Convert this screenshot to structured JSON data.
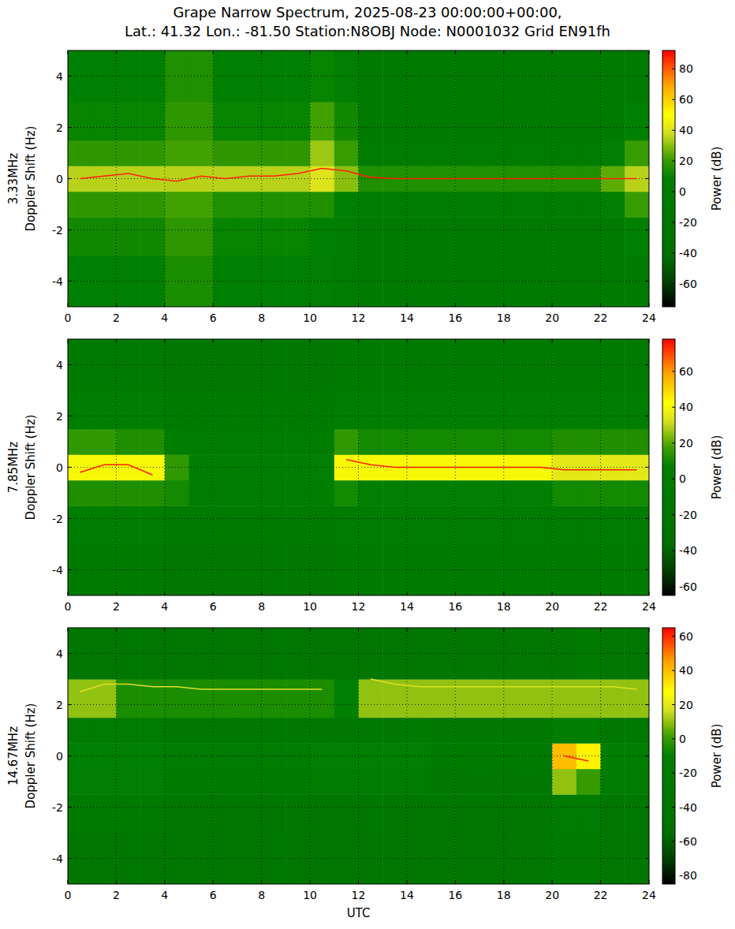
{
  "chart_data": [
    {
      "type": "heatmap",
      "title": [
        "Grape Narrow Spectrum, 2025-08-23 00:00:00+00:00,",
        "Lat.: 41.32 Lon.: -81.50 Station:N8OBJ Node: N0001032 Grid EN91fh"
      ],
      "ylabel": [
        "3.33MHz",
        "Doppler Shift (Hz)"
      ],
      "xlim": [
        0,
        24
      ],
      "xticks": [
        0,
        2,
        4,
        6,
        8,
        10,
        12,
        14,
        16,
        18,
        20,
        22,
        24
      ],
      "ylim": [
        -5,
        5
      ],
      "yticks": [
        -4,
        -2,
        0,
        2,
        4
      ],
      "grid": true,
      "x_edges": [
        0,
        1,
        2,
        3,
        4,
        5,
        6,
        7,
        8,
        9,
        10,
        11,
        12,
        13,
        14,
        15,
        16,
        17,
        18,
        19,
        20,
        21,
        22,
        23,
        24
      ],
      "y_edges": [
        -5,
        -3,
        -1.5,
        -0.5,
        0.5,
        1.5,
        3,
        5
      ],
      "cells": [
        [
          8,
          8,
          8,
          8,
          14,
          14,
          7,
          7,
          7,
          7,
          5,
          0,
          -8,
          -8,
          -8,
          -8,
          -8,
          -8,
          -8,
          -8,
          -8,
          -8,
          -8,
          -8
        ],
        [
          12,
          12,
          12,
          12,
          18,
          18,
          10,
          10,
          10,
          10,
          8,
          3,
          -7,
          -7,
          -7,
          -7,
          -7,
          -7,
          -7,
          -7,
          -7,
          -7,
          -7,
          8
        ],
        [
          18,
          18,
          18,
          18,
          22,
          22,
          15,
          15,
          15,
          15,
          15,
          8,
          -5,
          -5,
          -5,
          -5,
          -5,
          -5,
          -5,
          -5,
          -5,
          -5,
          5,
          20
        ],
        [
          35,
          35,
          35,
          35,
          35,
          35,
          35,
          35,
          35,
          35,
          40,
          30,
          15,
          15,
          15,
          15,
          15,
          15,
          15,
          15,
          15,
          15,
          25,
          35
        ],
        [
          18,
          18,
          18,
          18,
          22,
          22,
          18,
          18,
          18,
          18,
          32,
          20,
          0,
          0,
          -5,
          -5,
          -5,
          -5,
          -5,
          -5,
          -5,
          -5,
          5,
          20
        ],
        [
          10,
          10,
          10,
          10,
          18,
          18,
          10,
          10,
          10,
          10,
          22,
          12,
          -6,
          -6,
          -6,
          -6,
          -6,
          -6,
          -6,
          -6,
          -6,
          -6,
          -6,
          8
        ],
        [
          8,
          8,
          8,
          8,
          15,
          15,
          8,
          8,
          8,
          8,
          10,
          5,
          -8,
          -8,
          -8,
          -8,
          -8,
          -8,
          -8,
          -8,
          -8,
          -8,
          -8,
          -8
        ]
      ],
      "series": [
        {
          "color": "#ff2000",
          "x": [
            0.5,
            1.5,
            2.5,
            3.5,
            4.5,
            5.5,
            6.5,
            7.5,
            8.5,
            9.5,
            10.5,
            11.5,
            12.5,
            13.5,
            14.5,
            15.5,
            16.5,
            17.5,
            18.5,
            19.5,
            20.5,
            21.5,
            22.5,
            23.5
          ],
          "values": [
            0,
            0.1,
            0.2,
            0,
            -0.1,
            0.1,
            0,
            0.1,
            0.1,
            0.2,
            0.4,
            0.3,
            0.05,
            0,
            0,
            0,
            0,
            0,
            0,
            0,
            0,
            0,
            0,
            0
          ]
        }
      ],
      "colorbar": {
        "label": "Power (dB)",
        "range": [
          -75,
          92
        ],
        "ticks": [
          -60,
          -40,
          -20,
          0,
          20,
          40,
          60,
          80
        ]
      }
    },
    {
      "type": "heatmap",
      "ylabel": [
        "7.85MHz",
        "Doppler Shift (Hz)"
      ],
      "xlim": [
        0,
        24
      ],
      "xticks": [
        0,
        2,
        4,
        6,
        8,
        10,
        12,
        14,
        16,
        18,
        20,
        22,
        24
      ],
      "ylim": [
        -5,
        5
      ],
      "yticks": [
        -4,
        -2,
        0,
        2,
        4
      ],
      "grid": true,
      "x_edges": [
        0,
        1,
        2,
        3,
        4,
        5,
        6,
        7,
        8,
        9,
        10,
        11,
        12,
        13,
        14,
        15,
        16,
        17,
        18,
        19,
        20,
        21,
        22,
        23,
        24
      ],
      "y_edges": [
        -5,
        -3,
        -1.5,
        -0.5,
        0.5,
        1.5,
        3,
        5
      ],
      "cells": [
        [
          -8,
          -8,
          -8,
          -8,
          -12,
          -12,
          -12,
          -12,
          -12,
          -12,
          -12,
          -8,
          -8,
          -8,
          -8,
          -8,
          -8,
          -8,
          -8,
          -8,
          -8,
          -8,
          -8,
          -8
        ],
        [
          0,
          0,
          0,
          0,
          -8,
          -8,
          -8,
          -8,
          -8,
          -8,
          -8,
          -4,
          -4,
          -4,
          -4,
          -4,
          -4,
          -4,
          -4,
          -4,
          -4,
          -4,
          -4,
          -4
        ],
        [
          12,
          12,
          12,
          12,
          10,
          -2,
          -2,
          -2,
          -2,
          -2,
          0,
          10,
          5,
          5,
          5,
          5,
          5,
          5,
          5,
          5,
          10,
          10,
          10,
          10
        ],
        [
          40,
          40,
          40,
          40,
          15,
          2,
          2,
          2,
          2,
          2,
          5,
          40,
          40,
          40,
          40,
          40,
          40,
          40,
          40,
          40,
          35,
          35,
          35,
          35
        ],
        [
          15,
          15,
          12,
          12,
          0,
          -2,
          -2,
          -2,
          -2,
          -2,
          -2,
          15,
          10,
          10,
          10,
          10,
          10,
          10,
          10,
          10,
          12,
          12,
          12,
          12
        ],
        [
          0,
          0,
          0,
          0,
          -8,
          -8,
          -8,
          -8,
          -8,
          -8,
          -8,
          0,
          0,
          0,
          0,
          0,
          0,
          0,
          0,
          0,
          2,
          2,
          2,
          2
        ],
        [
          -10,
          -10,
          -10,
          -10,
          -12,
          -12,
          -12,
          -12,
          -12,
          -12,
          -12,
          -8,
          -8,
          -8,
          -8,
          -8,
          -8,
          -8,
          -8,
          -8,
          -8,
          -8,
          -8,
          -8
        ]
      ],
      "series": [
        {
          "color": "#ff2000",
          "x": [
            0.5,
            1.5,
            2.5,
            3.5,
            4.5,
            5.5,
            6.5,
            7.5,
            8.5,
            9.5,
            10.5,
            11.5,
            12.5,
            13.5,
            14.5,
            15.5,
            16.5,
            17.5,
            18.5,
            19.5,
            20.5,
            21.5,
            22.5,
            23.5
          ],
          "values": [
            -0.2,
            0.1,
            0.1,
            -0.3,
            null,
            null,
            null,
            null,
            null,
            null,
            null,
            0.3,
            0.1,
            0,
            0,
            0,
            0,
            0,
            0,
            0,
            -0.1,
            -0.1,
            -0.1,
            -0.1
          ]
        }
      ],
      "colorbar": {
        "label": "Power (dB)",
        "range": [
          -65,
          78
        ],
        "ticks": [
          -60,
          -40,
          -20,
          0,
          20,
          40,
          60
        ]
      }
    },
    {
      "type": "heatmap",
      "ylabel": [
        "14.67MHz",
        "Doppler Shift (Hz)"
      ],
      "xlabel": "UTC",
      "xlim": [
        0,
        24
      ],
      "xticks": [
        0,
        2,
        4,
        6,
        8,
        10,
        12,
        14,
        16,
        18,
        20,
        22,
        24
      ],
      "ylim": [
        -5,
        5
      ],
      "yticks": [
        -4,
        -2,
        0,
        2,
        4
      ],
      "grid": true,
      "x_edges": [
        0,
        1,
        2,
        3,
        4,
        5,
        6,
        7,
        8,
        9,
        10,
        11,
        12,
        13,
        14,
        15,
        16,
        17,
        18,
        19,
        20,
        21,
        22,
        23,
        24
      ],
      "y_edges": [
        -5,
        -3,
        -1.5,
        -0.5,
        0.5,
        1.5,
        3,
        5
      ],
      "cells": [
        [
          -35,
          -35,
          -35,
          -35,
          -35,
          -35,
          -35,
          -35,
          -35,
          -35,
          -35,
          -35,
          -35,
          -35,
          -35,
          -35,
          -35,
          -35,
          -35,
          -35,
          -25,
          -25,
          -35,
          -35
        ],
        [
          -25,
          -25,
          -25,
          -25,
          -32,
          -32,
          -32,
          -32,
          -32,
          -32,
          -32,
          -32,
          -32,
          -32,
          -32,
          -32,
          -32,
          -32,
          -32,
          -32,
          -20,
          -20,
          -32,
          -32
        ],
        [
          -12,
          -12,
          -12,
          -12,
          -25,
          -25,
          -25,
          -25,
          -25,
          -25,
          -22,
          -22,
          -22,
          -22,
          -22,
          -30,
          -30,
          -30,
          -30,
          -30,
          10,
          0,
          -18,
          -18
        ],
        [
          -10,
          -10,
          -10,
          -10,
          -22,
          -22,
          -22,
          -22,
          -22,
          -22,
          -12,
          -12,
          -12,
          -12,
          -12,
          -25,
          -25,
          -25,
          -25,
          -25,
          40,
          30,
          -15,
          -15
        ],
        [
          -20,
          -20,
          -20,
          -20,
          -30,
          -30,
          -30,
          -30,
          -30,
          -30,
          -30,
          -30,
          -30,
          -30,
          -25,
          -30,
          -30,
          -30,
          -30,
          -30,
          -15,
          -15,
          -30,
          -30
        ],
        [
          10,
          10,
          -5,
          -5,
          -5,
          -5,
          -5,
          -5,
          -5,
          -5,
          -5,
          -10,
          10,
          10,
          10,
          10,
          10,
          10,
          10,
          10,
          10,
          10,
          10,
          10
        ],
        [
          -35,
          -35,
          -35,
          -35,
          -35,
          -35,
          -35,
          -35,
          -35,
          -35,
          -35,
          -35,
          -35,
          -35,
          -35,
          -35,
          -35,
          -35,
          -35,
          -35,
          -35,
          -25,
          -35,
          -35
        ]
      ],
      "series": [
        {
          "color": "#e0e020",
          "x": [
            0.5,
            1.5,
            2.5,
            3.5,
            4.5,
            5.5,
            6.5,
            7.5,
            8.5,
            9.5,
            10.5,
            11.5,
            12.5,
            13.5,
            14.5,
            15.5,
            16.5,
            17.5,
            18.5,
            19.5,
            20.5,
            21.5,
            22.5,
            23.5
          ],
          "values": [
            2.5,
            2.8,
            2.8,
            2.7,
            2.7,
            2.6,
            2.6,
            2.6,
            2.6,
            2.6,
            2.6,
            null,
            3.0,
            2.8,
            2.7,
            2.7,
            2.7,
            2.7,
            2.7,
            2.7,
            2.7,
            2.7,
            2.7,
            2.6
          ]
        },
        {
          "color": "#ff2000",
          "x": [
            20.5,
            21.5
          ],
          "values": [
            0,
            -0.2
          ]
        }
      ],
      "colorbar": {
        "label": "Power (dB)",
        "range": [
          -85,
          65
        ],
        "ticks": [
          -80,
          -60,
          -40,
          -20,
          0,
          20,
          40,
          60
        ]
      }
    }
  ]
}
